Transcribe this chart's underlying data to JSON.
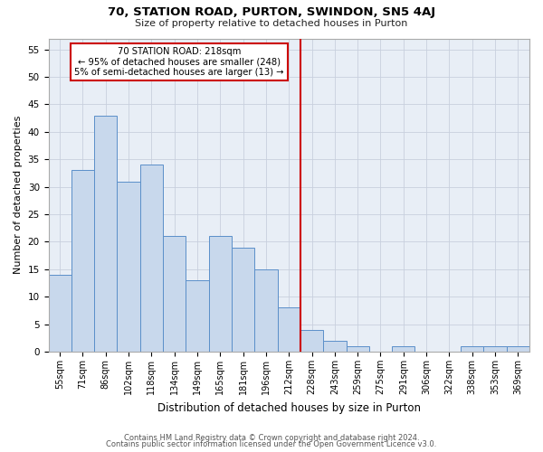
{
  "title": "70, STATION ROAD, PURTON, SWINDON, SN5 4AJ",
  "subtitle": "Size of property relative to detached houses in Purton",
  "xlabel": "Distribution of detached houses by size in Purton",
  "ylabel": "Number of detached properties",
  "bins": [
    "55sqm",
    "71sqm",
    "86sqm",
    "102sqm",
    "118sqm",
    "134sqm",
    "149sqm",
    "165sqm",
    "181sqm",
    "196sqm",
    "212sqm",
    "228sqm",
    "243sqm",
    "259sqm",
    "275sqm",
    "291sqm",
    "306sqm",
    "322sqm",
    "338sqm",
    "353sqm",
    "369sqm"
  ],
  "values": [
    14,
    33,
    43,
    31,
    34,
    21,
    13,
    21,
    19,
    15,
    8,
    4,
    2,
    1,
    0,
    1,
    0,
    0,
    1,
    1,
    1
  ],
  "bar_color": "#c8d8ec",
  "bar_edge_color": "#5b8fc9",
  "grid_color": "#c8d0de",
  "bg_color": "#e8eef6",
  "vline_x_index": 10,
  "vline_color": "#cc0000",
  "annotation_text": "70 STATION ROAD: 218sqm\n← 95% of detached houses are smaller (248)\n5% of semi-detached houses are larger (13) →",
  "footer1": "Contains HM Land Registry data © Crown copyright and database right 2024.",
  "footer2": "Contains public sector information licensed under the Open Government Licence v3.0.",
  "ylim": [
    0,
    57
  ],
  "yticks": [
    0,
    5,
    10,
    15,
    20,
    25,
    30,
    35,
    40,
    45,
    50,
    55
  ]
}
